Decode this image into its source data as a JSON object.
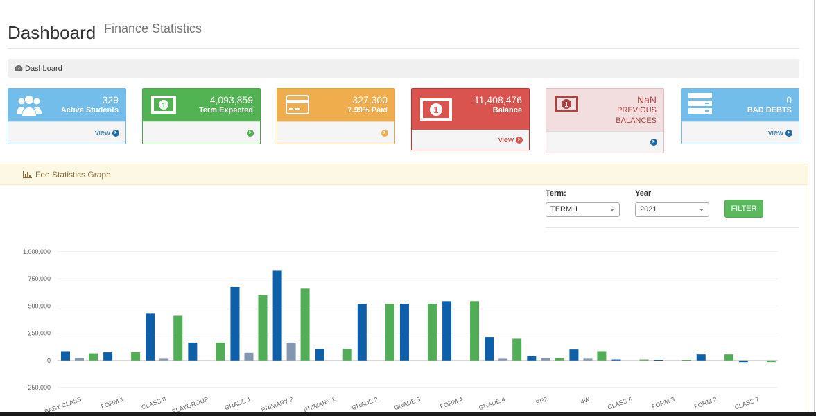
{
  "header": {
    "title": "Dashboard",
    "subtitle": "Finance Statistics"
  },
  "breadcrumb": {
    "label": "Dashboard",
    "icon": "dashboard-icon"
  },
  "stats": [
    {
      "value": "329",
      "label": "Active Students",
      "link": "view",
      "icon": "users-icon",
      "color": "#72bdea"
    },
    {
      "value": "4,093,859",
      "label": "Term Expected",
      "link": "",
      "icon": "money-icon",
      "color": "#51b352"
    },
    {
      "value": "327,300",
      "label": "7.99% Paid",
      "link": "",
      "icon": "credit-card-icon",
      "color": "#f0ad4e"
    },
    {
      "value": "11,408,476",
      "label": "Balance",
      "link": "view",
      "icon": "money-icon",
      "color": "#d9534f"
    },
    {
      "value": "NaN",
      "label_line1": "PREVIOUS",
      "label_line2": "BALANCES",
      "link": "",
      "icon": "money-icon",
      "color": "#f2dede"
    },
    {
      "value": "0",
      "label": "BAD DEBTS",
      "link": "view",
      "icon": "server-icon",
      "color": "#72bdea"
    }
  ],
  "panel": {
    "title": "Fee Statistics Graph",
    "icon": "bar-chart-icon"
  },
  "filters": {
    "term_label": "Term:",
    "term_value": "TERM 1",
    "year_label": "Year",
    "year_value": "2021",
    "button_label": "FILTER"
  },
  "chart_data": {
    "type": "bar",
    "categories": [
      "BABY CLASS",
      "FORM 1",
      "CLASS 8",
      "PLAYGROUP",
      "GRADE 1",
      "PRIMARY 2",
      "PRIMARY 1",
      "GRADE 2",
      "GRADE 3",
      "FORM 4",
      "GRADE 4",
      "PP2",
      "4W",
      "CLASS 6",
      "FORM 3",
      "FORM 2",
      "CLASS 7"
    ],
    "series": [
      {
        "color": "#0e5fa9",
        "values": [
          85000,
          75000,
          430000,
          165000,
          675000,
          825000,
          105000,
          520000,
          520000,
          545000,
          215000,
          40000,
          100000,
          8000,
          5000,
          55000,
          -15000
        ]
      },
      {
        "color": "#8497b0",
        "values": [
          20000,
          0,
          15000,
          0,
          70000,
          165000,
          0,
          0,
          0,
          0,
          15000,
          20000,
          15000,
          0,
          0,
          0,
          0
        ]
      },
      {
        "color": "#51ad56",
        "values": [
          65000,
          75000,
          410000,
          165000,
          600000,
          660000,
          105000,
          520000,
          520000,
          545000,
          200000,
          20000,
          85000,
          8000,
          5000,
          55000,
          -15000
        ]
      }
    ],
    "ylim": [
      -250000,
      1000000
    ],
    "yticks": [
      "1,000,000",
      "750,000",
      "500,000",
      "250,000",
      "0",
      "-250,000"
    ],
    "grid": true
  }
}
